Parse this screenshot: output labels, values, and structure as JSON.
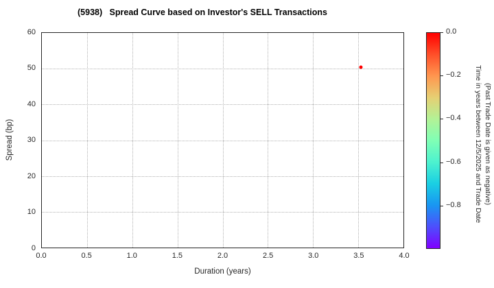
{
  "title": "(5938)   Spread Curve based on Investor's SELL Transactions",
  "chart_data": {
    "type": "scatter",
    "title": "(5938)   Spread Curve based on Investor's SELL Transactions",
    "xlabel": "Duration (years)",
    "ylabel": "Spread (bp)",
    "xlim": [
      0.0,
      4.0
    ],
    "ylim": [
      0,
      60
    ],
    "grid": "dotted",
    "legend": "none",
    "x_ticks": [
      {
        "value": 0.0,
        "label": "0.0"
      },
      {
        "value": 0.5,
        "label": "0.5"
      },
      {
        "value": 1.0,
        "label": "1.0"
      },
      {
        "value": 1.5,
        "label": "1.5"
      },
      {
        "value": 2.0,
        "label": "2.0"
      },
      {
        "value": 2.5,
        "label": "2.5"
      },
      {
        "value": 3.0,
        "label": "3.0"
      },
      {
        "value": 3.5,
        "label": "3.5"
      },
      {
        "value": 4.0,
        "label": "4.0"
      }
    ],
    "y_ticks": [
      {
        "value": 0,
        "label": "0"
      },
      {
        "value": 10,
        "label": "10"
      },
      {
        "value": 20,
        "label": "20"
      },
      {
        "value": 30,
        "label": "30"
      },
      {
        "value": 40,
        "label": "40"
      },
      {
        "value": 50,
        "label": "50"
      },
      {
        "value": 60,
        "label": "60"
      }
    ],
    "points": [
      {
        "x": 3.53,
        "y": 50.5,
        "color_value": 0.0,
        "color": "#ff0000"
      }
    ],
    "colorbar": {
      "label_line1": "Time in years between 12/5/2025 and Trade Date",
      "label_line2": "(Past Trade Date is given as negative)",
      "range_top": 0.0,
      "range_bottom": -1.0,
      "ticks": [
        {
          "value": 0.0,
          "label": "0.0"
        },
        {
          "value": -0.2,
          "label": "−0.2"
        },
        {
          "value": -0.4,
          "label": "−0.4"
        },
        {
          "value": -0.6,
          "label": "−0.6"
        },
        {
          "value": -0.8,
          "label": "−0.8"
        }
      ],
      "colormap": "rainbow",
      "gradient_top_to_bottom": [
        "#ff0000",
        "#ff4f29",
        "#ff964f",
        "#e6cf73",
        "#b3f296",
        "#80ffb5",
        "#4df2cf",
        "#1acfe3",
        "#1996f2",
        "#4d4ffc",
        "#8000ff"
      ]
    },
    "style": {
      "axis_color": "#262626",
      "grid_color": "#b0b0b0",
      "background": "#ffffff"
    }
  }
}
